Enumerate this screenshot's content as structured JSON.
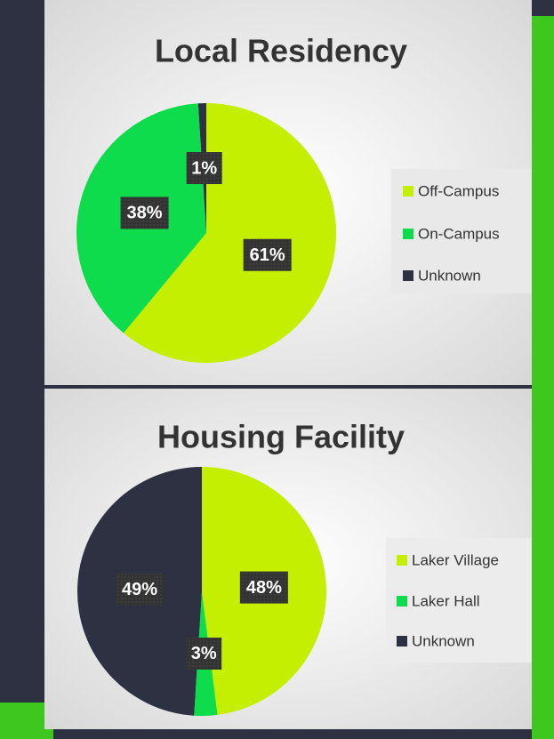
{
  "chart_data": [
    {
      "type": "pie",
      "title": "Local Residency",
      "categories": [
        "Off-Campus",
        "On-Campus",
        "Unknown"
      ],
      "values": [
        61,
        38,
        1
      ],
      "value_labels": [
        "61%",
        "38%",
        "1%"
      ],
      "colors": [
        "#c4ef00",
        "#0fdc4c",
        "#2d3142"
      ],
      "legend": "right"
    },
    {
      "type": "pie",
      "title": "Housing Facility",
      "categories": [
        "Laker Village",
        "Laker Hall",
        "Unknown"
      ],
      "values": [
        48,
        3,
        49
      ],
      "value_labels": [
        "48%",
        "3%",
        "49%"
      ],
      "colors": [
        "#c4ef00",
        "#0fdc4c",
        "#2d3142"
      ],
      "legend": "right"
    }
  ]
}
